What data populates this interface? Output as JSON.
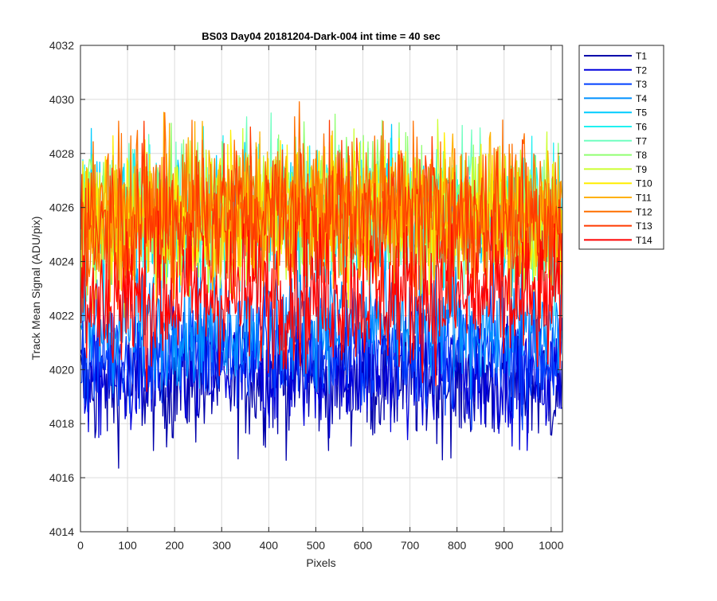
{
  "chart_data": {
    "type": "line",
    "title": "BS03 Day04 20181204-Dark-004 int time = 40 sec",
    "xlabel": "Pixels",
    "ylabel": "Track Mean Signal (ADU/pix)",
    "xlim": [
      0,
      1024
    ],
    "ylim": [
      4014,
      4032
    ],
    "x_ticks": [
      0,
      100,
      200,
      300,
      400,
      500,
      600,
      700,
      800,
      900,
      1000
    ],
    "y_ticks": [
      4014,
      4016,
      4018,
      4020,
      4022,
      4024,
      4026,
      4028,
      4030,
      4032
    ],
    "grid": true,
    "legend_position": "outside-top-right",
    "x": "pixel index 1 to 1024",
    "series": [
      {
        "name": "T1",
        "color": "#0000aa",
        "mean_level": 4019.5,
        "noise_range": [
          4016.0,
          4023.0
        ]
      },
      {
        "name": "T2",
        "color": "#0000dd",
        "mean_level": 4019.8,
        "noise_range": [
          4016.5,
          4023.0
        ]
      },
      {
        "name": "T3",
        "color": "#0040ff",
        "mean_level": 4020.6,
        "noise_range": [
          4017.5,
          4024.0
        ]
      },
      {
        "name": "T4",
        "color": "#0090ff",
        "mean_level": 4021.6,
        "noise_range": [
          4018.5,
          4025.0
        ]
      },
      {
        "name": "T5",
        "color": "#00ccff",
        "mean_level": 4025.5,
        "noise_range": [
          4022.0,
          4029.5
        ]
      },
      {
        "name": "T6",
        "color": "#20f0f0",
        "mean_level": 4025.6,
        "noise_range": [
          4022.0,
          4029.5
        ]
      },
      {
        "name": "T7",
        "color": "#70ffc0",
        "mean_level": 4025.6,
        "noise_range": [
          4022.0,
          4029.5
        ]
      },
      {
        "name": "T8",
        "color": "#90ff70",
        "mean_level": 4026.0,
        "noise_range": [
          4022.5,
          4030.4
        ]
      },
      {
        "name": "T9",
        "color": "#ccff30",
        "mean_level": 4025.7,
        "noise_range": [
          4022.0,
          4029.6
        ]
      },
      {
        "name": "T10",
        "color": "#ffee00",
        "mean_level": 4025.6,
        "noise_range": [
          4022.0,
          4030.0
        ]
      },
      {
        "name": "T11",
        "color": "#ffb000",
        "mean_level": 4025.7,
        "noise_range": [
          4021.5,
          4029.8
        ]
      },
      {
        "name": "T12",
        "color": "#ff7000",
        "mean_level": 4025.8,
        "noise_range": [
          4021.5,
          4030.2
        ]
      },
      {
        "name": "T13",
        "color": "#ff3a00",
        "mean_level": 4025.5,
        "noise_range": [
          4021.0,
          4029.8
        ]
      },
      {
        "name": "T14",
        "color": "#ff0000",
        "mean_level": 4022.6,
        "noise_range": [
          4018.5,
          4026.5
        ]
      }
    ]
  }
}
